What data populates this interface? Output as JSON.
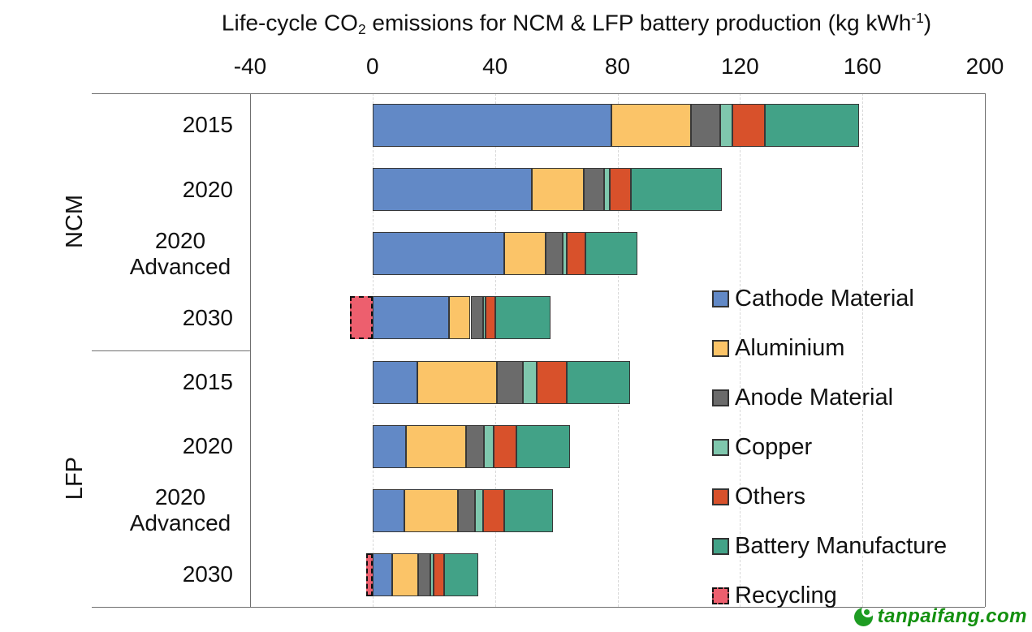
{
  "watermark": {
    "text": "tanpaifang.com",
    "icon": "recycle-leaf-icon"
  },
  "chart_data": {
    "type": "bar",
    "variant": "horizontal-stacked",
    "title": "Life-cycle CO2 emissions for NCM & LFP battery production (kg kWh-1)",
    "title_parts": {
      "pre": "Life-cycle CO",
      "sub": "2",
      "mid": " emissions for NCM & LFP battery production (kg kWh",
      "sup": "-1",
      "post": ")"
    },
    "unit": "kg kWh-1",
    "x_axis": {
      "position": "top",
      "min": -40,
      "max": 200,
      "ticks": [
        -40,
        0,
        40,
        80,
        120,
        160,
        200
      ],
      "gridline_ticks": [
        0,
        40,
        80,
        120,
        160
      ],
      "grid": "dashed"
    },
    "series": [
      {
        "name": "Cathode Material",
        "color": "#6289c6"
      },
      {
        "name": "Aluminium",
        "color": "#fbc468"
      },
      {
        "name": "Anode Material",
        "color": "#6b6b6b"
      },
      {
        "name": "Copper",
        "color": "#7fc7ad"
      },
      {
        "name": "Others",
        "color": "#d8512b"
      },
      {
        "name": "Battery Manufacture",
        "color": "#42a287"
      }
    ],
    "recycling_series": {
      "name": "Recycling",
      "color": "#ed5f6e",
      "border": "dashed"
    },
    "groups": [
      {
        "label": "NCM",
        "row_indices": [
          0,
          1,
          2,
          3
        ]
      },
      {
        "label": "LFP",
        "row_indices": [
          4,
          5,
          6,
          7
        ]
      }
    ],
    "rows": [
      {
        "group": "NCM",
        "label": "2015",
        "values": [
          78,
          26,
          9.5,
          4,
          10.5,
          31
        ],
        "recycling": 0
      },
      {
        "group": "NCM",
        "label": "2020",
        "values": [
          52,
          17,
          6.5,
          2,
          7,
          29.5
        ],
        "recycling": 0
      },
      {
        "group": "NCM",
        "label": "2020 Advanced",
        "values": [
          43,
          13.5,
          5.5,
          1.5,
          6,
          17
        ],
        "recycling": 0
      },
      {
        "group": "NCM",
        "label": "2030",
        "values": [
          25,
          7,
          4,
          1,
          3,
          18
        ],
        "recycling": -7.5
      },
      {
        "group": "LFP",
        "label": "2015",
        "values": [
          14.5,
          26,
          8.5,
          4.5,
          10,
          20.5
        ],
        "recycling": 0
      },
      {
        "group": "LFP",
        "label": "2020",
        "values": [
          11,
          19.5,
          6,
          3,
          7.5,
          17.5
        ],
        "recycling": 0
      },
      {
        "group": "LFP",
        "label": "2020 Advanced",
        "values": [
          10.5,
          17.5,
          5.5,
          2.5,
          7,
          16
        ],
        "recycling": 0
      },
      {
        "group": "LFP",
        "label": "2030",
        "values": [
          6.5,
          8.5,
          4,
          1,
          3.5,
          11
        ],
        "recycling": -2
      }
    ],
    "legend": [
      "Cathode Material",
      "Aluminium",
      "Anode Material",
      "Copper",
      "Others",
      "Battery Manufacture",
      "Recycling"
    ],
    "legend_position": "inside-right"
  }
}
